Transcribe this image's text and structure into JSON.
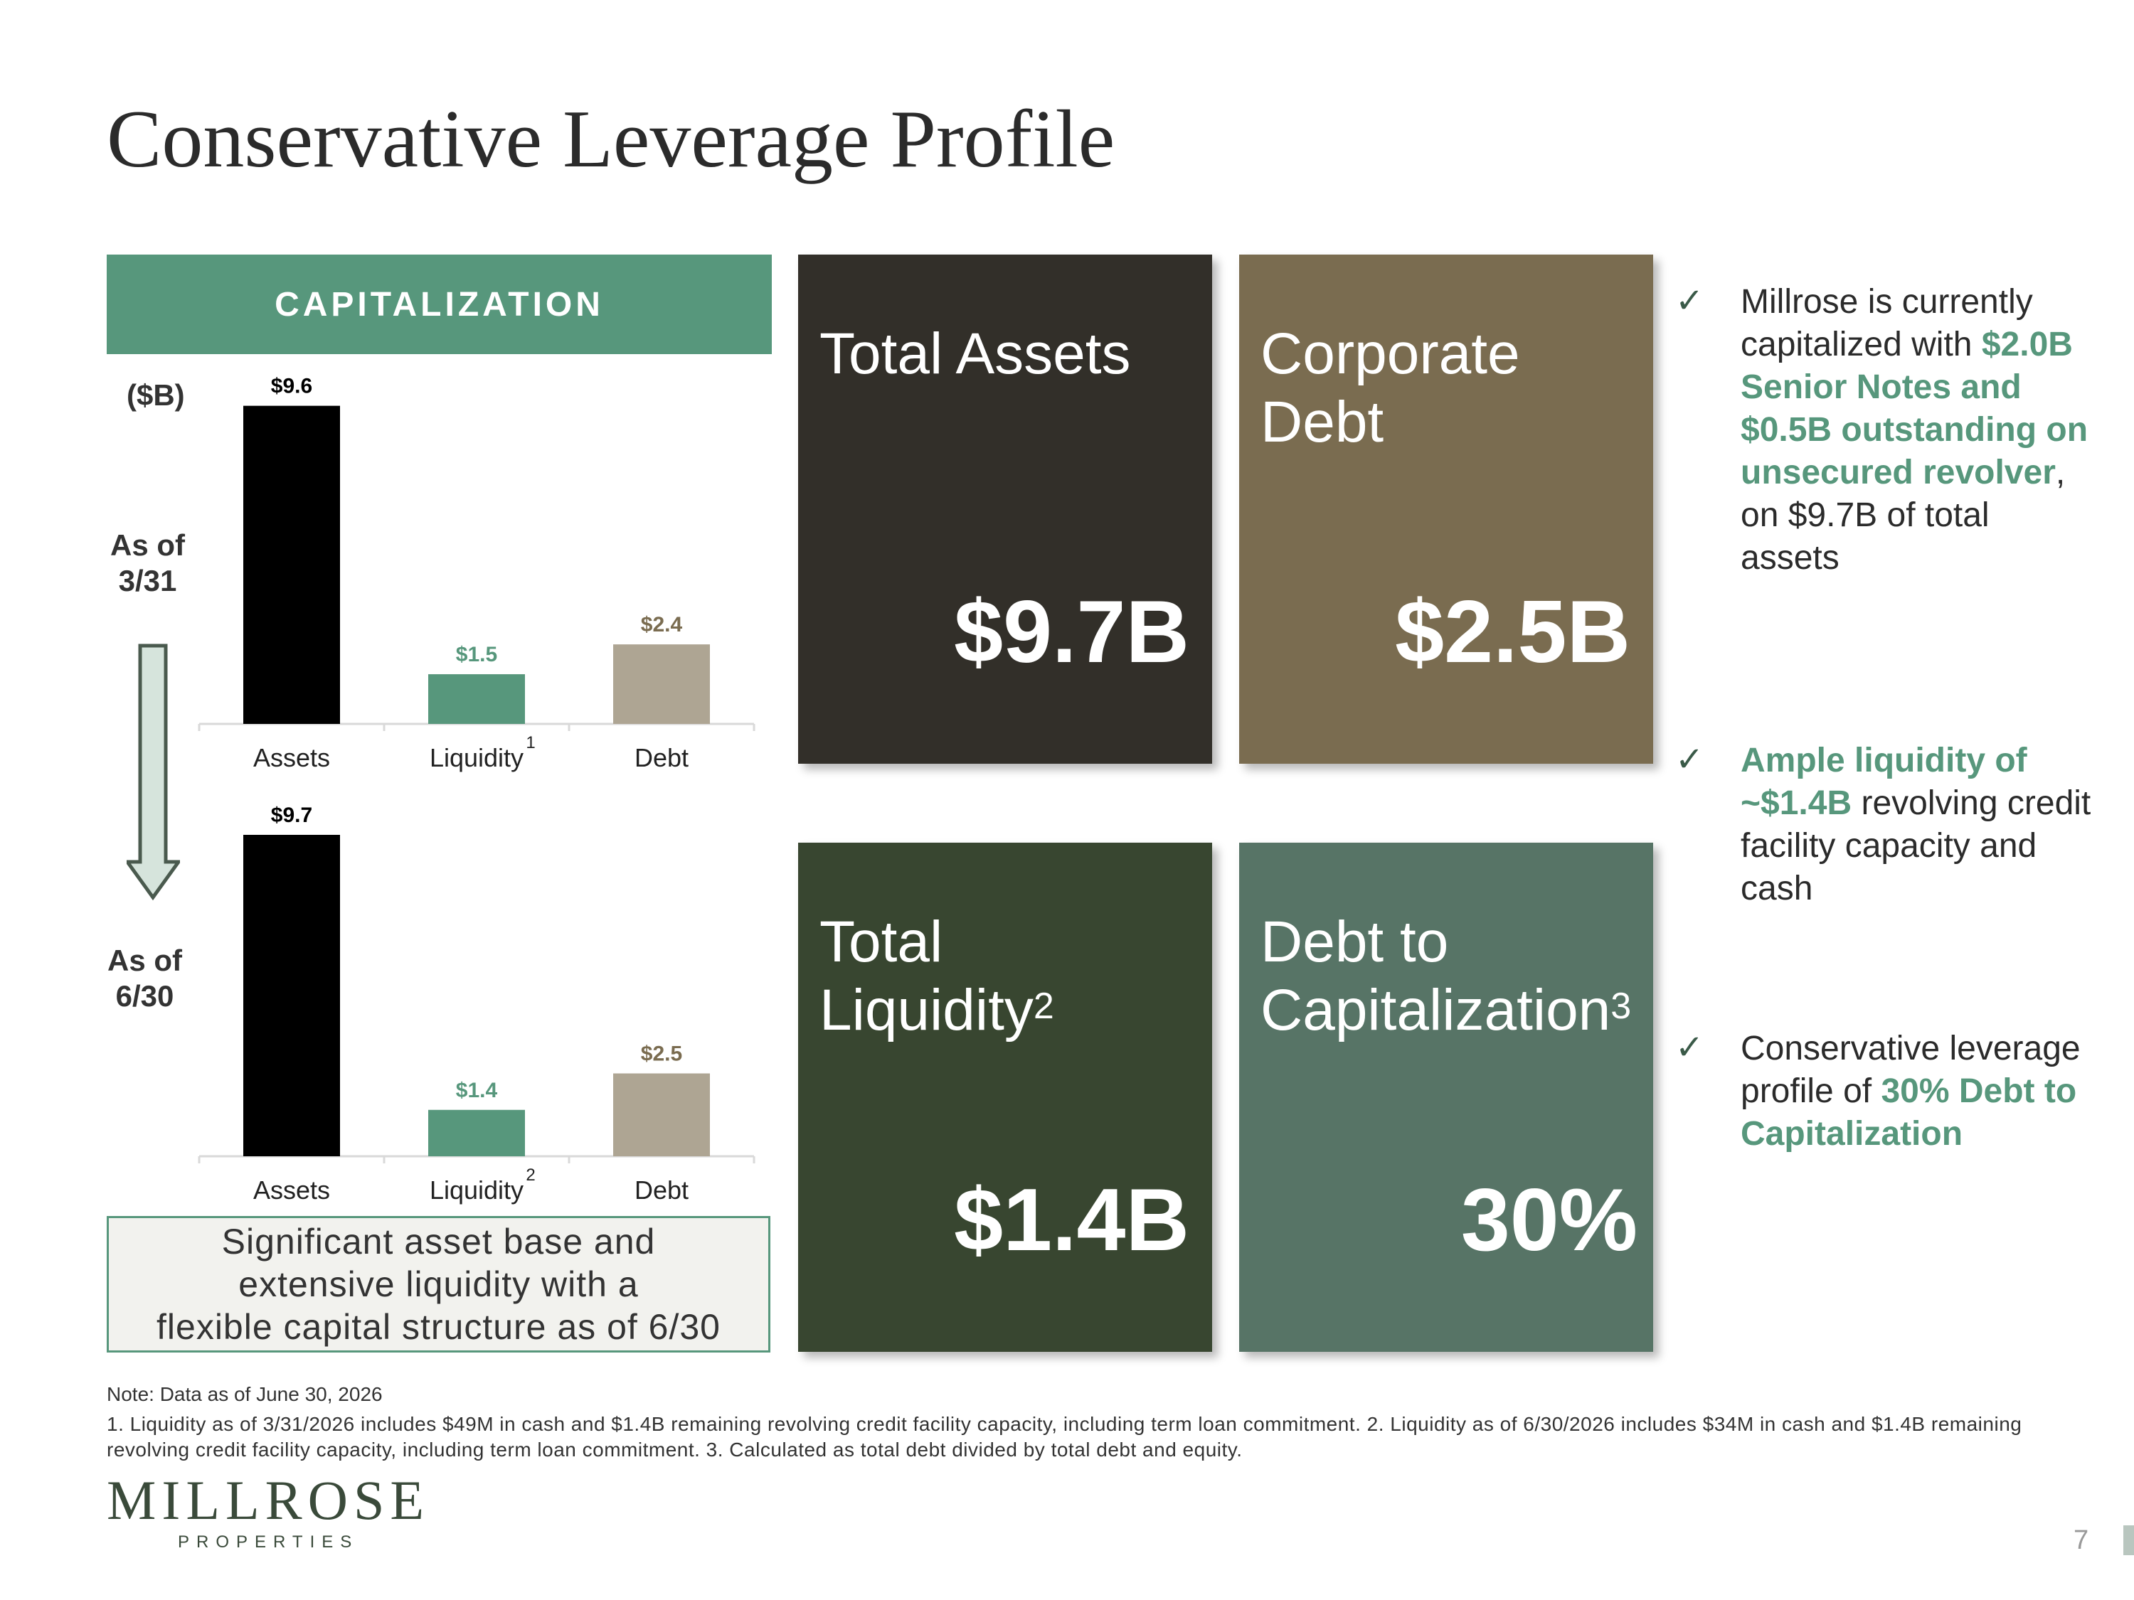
{
  "title": "Conservative Leverage Profile",
  "capitalization": {
    "header": "CAPITALIZATION",
    "unit": "($B)",
    "period1_label_a": "As of",
    "period1_label_b": "3/31",
    "period2_label_a": "As of",
    "period2_label_b": "6/30"
  },
  "chart_data": [
    {
      "type": "bar",
      "title": "As of 3/31",
      "categories": [
        "Assets",
        "Liquidity",
        "Debt"
      ],
      "category_footnotes": [
        "",
        "1",
        ""
      ],
      "values": [
        9.6,
        1.5,
        2.4
      ],
      "labels": [
        "$9.6",
        "$1.5",
        "$2.4"
      ],
      "colors": [
        "#000000",
        "#57977c",
        "#aea593"
      ],
      "label_colors": [
        "#000000",
        "#57977c",
        "#7a6c50"
      ],
      "ylim": [
        0,
        9.7
      ]
    },
    {
      "type": "bar",
      "title": "As of 6/30",
      "categories": [
        "Assets",
        "Liquidity",
        "Debt"
      ],
      "category_footnotes": [
        "",
        "2",
        ""
      ],
      "values": [
        9.7,
        1.4,
        2.5
      ],
      "labels": [
        "$9.7",
        "$1.4",
        "$2.5"
      ],
      "colors": [
        "#000000",
        "#57977c",
        "#aea593"
      ],
      "label_colors": [
        "#000000",
        "#57977c",
        "#7a6c50"
      ],
      "ylim": [
        0,
        9.7
      ]
    }
  ],
  "summary_lines": [
    "Significant asset base and",
    "extensive liquidity with a",
    "flexible capital structure as of 6/30"
  ],
  "tiles": {
    "total_assets": {
      "label": "Total Assets",
      "value": "$9.7B",
      "color": "#322f29"
    },
    "corporate_debt": {
      "label_a": "Corporate",
      "label_b": "Debt",
      "value": "$2.5B",
      "color": "#7a6c50"
    },
    "total_liquidity": {
      "label_a": "Total",
      "label_b": "Liquidity",
      "sup": "2",
      "value": "$1.4B",
      "color": "#384630"
    },
    "debt_to_cap": {
      "label_a": "Debt to",
      "label_b": "Capitalization",
      "sup": "3",
      "value": "30%",
      "color": "#577466"
    }
  },
  "bullets": [
    {
      "check": "✓",
      "t1": "Millrose is currently capitalized with ",
      "h1": "$2.0B Senior Notes and $0.5B outstanding on unsecured revolver",
      "t2": ", on $9.7B of total assets"
    },
    {
      "check": "✓",
      "h1": "Ample liquidity of ~$1.4B",
      "t2": " revolving credit facility capacity and cash"
    },
    {
      "check": "✓",
      "t1": "Conservative leverage profile of ",
      "h1": "30% Debt to Capitalization"
    }
  ],
  "note": "Note: Data as of June 30, 2026",
  "footnotes": " 1. Liquidity as of 3/31/2026 includes $49M in cash and $1.4B remaining revolving credit facility capacity, including term loan commitment. 2.  Liquidity as of 6/30/2026 includes $34M in cash and $1.4B remaining revolving credit facility capacity, including term loan commitment. 3. Calculated as total debt divided by total debt and equity.",
  "logo": {
    "main": "MILLROSE",
    "sub": "PROPERTIES"
  },
  "page_number": "7"
}
